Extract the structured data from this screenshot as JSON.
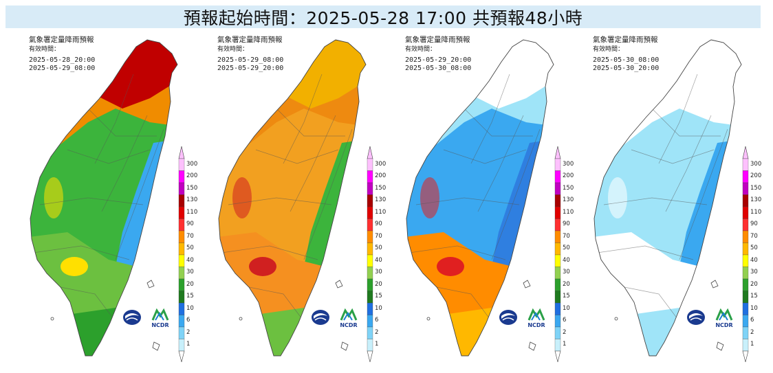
{
  "title": "預報起始時間：2025-05-28 17:00  共預報48小時",
  "legend": {
    "levels": [
      "300",
      "200",
      "150",
      "130",
      "110",
      "90",
      "70",
      "50",
      "40",
      "30",
      "20",
      "15",
      "10",
      "6",
      "2",
      "1"
    ],
    "colors": [
      "#fdc0fd",
      "#ff00ff",
      "#c000c0",
      "#a80000",
      "#e00000",
      "#ff3030",
      "#ff8c00",
      "#ffb800",
      "#ffff00",
      "#92d050",
      "#2ca02c",
      "#1f7a1f",
      "#1f6fe0",
      "#3aa8f0",
      "#7fd3f7",
      "#c8f0fb"
    ]
  },
  "panels": [
    {
      "title": "氣象署定量降雨預報",
      "subtitle": "有效時間：",
      "start": "2025-05-28_20:00",
      "end": "2025-05-29_08:00",
      "palette": {
        "north": "#c00000",
        "upper": "#f08c00",
        "mid": "#3cb43c",
        "east": "#3aa8f0",
        "south": "#6cc040",
        "southtip": "#2ca02c",
        "coast": "#ffe000"
      }
    },
    {
      "title": "氣象署定量降雨預報",
      "subtitle": "有效時間：",
      "start": "2025-05-29_08:00",
      "end": "2025-05-29_20:00",
      "palette": {
        "north": "#f2b000",
        "upper": "#ee8a10",
        "mid": "#f2a020",
        "east": "#3cb43c",
        "south": "#f59020",
        "southtip": "#6cc040",
        "coast": "#d02020"
      }
    },
    {
      "title": "氣象署定量降雨預報",
      "subtitle": "有效時間：",
      "start": "2025-05-29_20:00",
      "end": "2025-05-30_08:00",
      "palette": {
        "north": "#ffffff",
        "upper": "#9fe4f8",
        "mid": "#3aa8f0",
        "east": "#2f7fe0",
        "south": "#ff8c00",
        "southtip": "#ffb800",
        "coast": "#e02020"
      }
    },
    {
      "title": "氣象署定量降雨預報",
      "subtitle": "有效時間：",
      "start": "2025-05-30_08:00",
      "end": "2025-05-30_20:00",
      "palette": {
        "north": "#ffffff",
        "upper": "#ffffff",
        "mid": "#9fe4f8",
        "east": "#3aa8f0",
        "south": "#ffffff",
        "southtip": "#9fe4f8",
        "coast": "#ffffff"
      }
    }
  ],
  "logos": {
    "left": "cwa-logo",
    "right": "ncdr-logo",
    "ncdr_text": "NCDR"
  }
}
